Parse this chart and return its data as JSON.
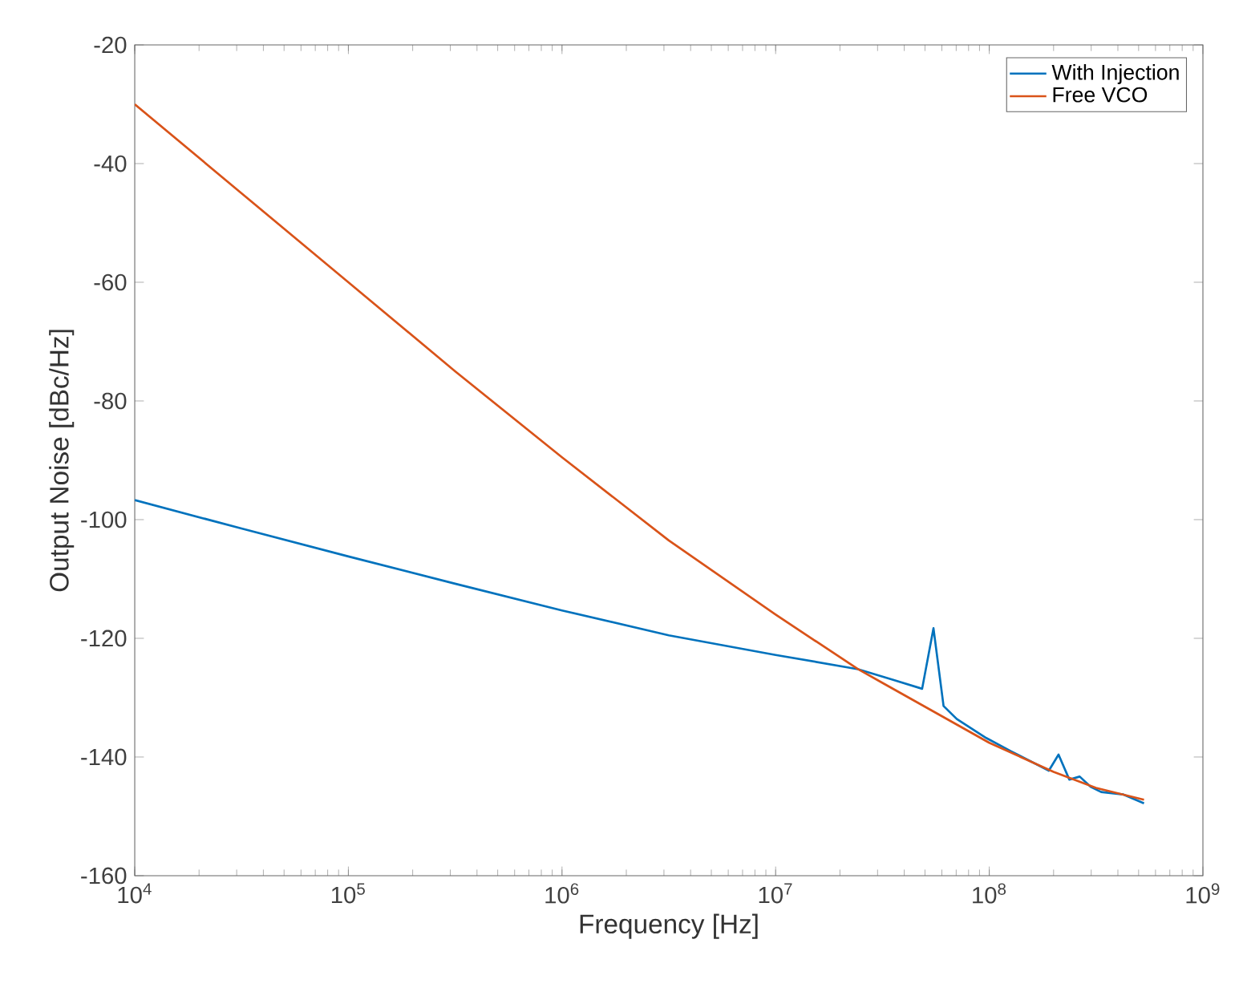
{
  "chart_data": {
    "type": "line",
    "xlabel": "Frequency [Hz]",
    "ylabel": "Output Noise [dBc/Hz]",
    "log": "x",
    "grid": false,
    "legend": "top right",
    "xlim": [
      10000.0,
      1000000000.0
    ],
    "xticks": [
      {
        "value": 10000.0,
        "label": "10$^{4}$"
      },
      {
        "value": 100000.0,
        "label": "10$^{5}$"
      },
      {
        "value": 1000000.0,
        "label": "10$^{6}$"
      },
      {
        "value": 10000000.0,
        "label": "10$^{7}$"
      },
      {
        "value": 100000000.0,
        "label": "10$^{8}$"
      },
      {
        "value": 1000000000.0,
        "label": "10$^{9}$"
      }
    ],
    "ylim": [
      -160,
      -20
    ],
    "yticks": [
      -160,
      -140,
      -120,
      -100,
      -80,
      -60,
      -40,
      -20
    ],
    "series": [
      {
        "name": "With Injection",
        "color": "#0072bd",
        "x": [
          10000.0,
          31600.0,
          100000.0,
          316000.0,
          1000000.0,
          3160000.0,
          10000000.0,
          24300000.0,
          35500000.0,
          48500000.0,
          54800000.0,
          61100000.0,
          70500000.0,
          96800000.0,
          126000000.0,
          190000000.0,
          211000000.0,
          237000000.0,
          265000000.0,
          298000000.0,
          334000000.0,
          422000000.0,
          530000000.0
        ],
        "values": [
          -96.7,
          -101.5,
          -106.2,
          -110.8,
          -115.3,
          -119.5,
          -122.8,
          -125.2,
          -127,
          -128.5,
          -118.3,
          -131.4,
          -133.6,
          -136.8,
          -139,
          -142.3,
          -139.6,
          -143.8,
          -143.3,
          -145,
          -145.9,
          -146.3,
          -147.8
        ]
      },
      {
        "name": "Free VCO",
        "color": "#d95319",
        "x": [
          10000.0,
          31600.0,
          100000.0,
          316000.0,
          1000000.0,
          3160000.0,
          10000000.0,
          24300000.0,
          31600000.0,
          100000000.0,
          200000000.0,
          316000000.0,
          530000000.0
        ],
        "values": [
          -30,
          -45,
          -60,
          -75,
          -89.5,
          -103.5,
          -116,
          -125.2,
          -127.5,
          -137.6,
          -142.5,
          -145.2,
          -147.2
        ]
      }
    ]
  }
}
